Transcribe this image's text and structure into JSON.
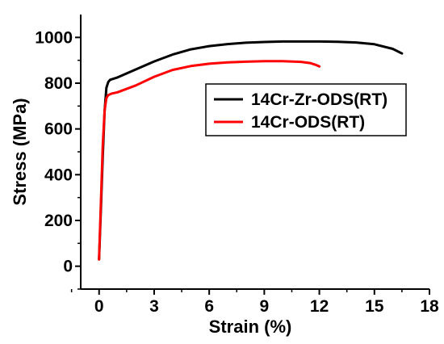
{
  "chart_data": {
    "type": "line",
    "xlabel": "Strain (%)",
    "ylabel": "Stress (MPa)",
    "xlim": [
      -1,
      18
    ],
    "ylim": [
      -100,
      1100
    ],
    "xticks": [
      0,
      3,
      6,
      9,
      12,
      15,
      18
    ],
    "yticks": [
      0,
      200,
      400,
      600,
      800,
      1000
    ],
    "grid": false,
    "legend_position": "right-middle",
    "series": [
      {
        "name": "14Cr-Zr-ODS(RT)",
        "color": "#000000",
        "points": [
          [
            0,
            30
          ],
          [
            0.1,
            250
          ],
          [
            0.2,
            480
          ],
          [
            0.3,
            680
          ],
          [
            0.4,
            780
          ],
          [
            0.5,
            805
          ],
          [
            0.6,
            815
          ],
          [
            1,
            825
          ],
          [
            2,
            860
          ],
          [
            3,
            895
          ],
          [
            4,
            925
          ],
          [
            5,
            948
          ],
          [
            6,
            962
          ],
          [
            7,
            971
          ],
          [
            8,
            977
          ],
          [
            9,
            980
          ],
          [
            10,
            982
          ],
          [
            11,
            982
          ],
          [
            12,
            982
          ],
          [
            13,
            981
          ],
          [
            14,
            978
          ],
          [
            15,
            970
          ],
          [
            16,
            950
          ],
          [
            16.5,
            930
          ]
        ]
      },
      {
        "name": "14Cr-ODS(RT)",
        "color": "#ff0000",
        "points": [
          [
            0,
            30
          ],
          [
            0.1,
            280
          ],
          [
            0.2,
            530
          ],
          [
            0.3,
            680
          ],
          [
            0.4,
            735
          ],
          [
            0.5,
            748
          ],
          [
            0.7,
            755
          ],
          [
            1,
            760
          ],
          [
            2,
            790
          ],
          [
            3,
            828
          ],
          [
            4,
            858
          ],
          [
            5,
            875
          ],
          [
            6,
            885
          ],
          [
            7,
            891
          ],
          [
            8,
            894
          ],
          [
            9,
            896
          ],
          [
            10,
            896
          ],
          [
            11,
            893
          ],
          [
            11.5,
            888
          ],
          [
            11.8,
            880
          ],
          [
            12,
            873
          ]
        ]
      }
    ]
  }
}
